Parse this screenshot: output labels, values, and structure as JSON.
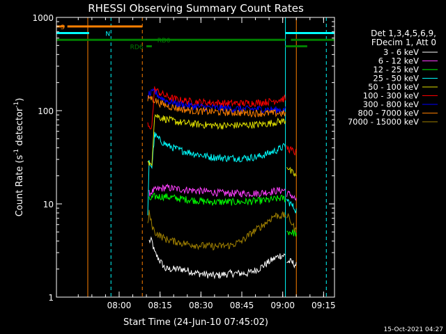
{
  "chart_data": {
    "type": "line",
    "title": "RHESSI Observing Summary Count Rates",
    "xlabel": "Start Time (24-Jun-10 07:45:02)",
    "ylabel_main": "Count Rate (s",
    "ylabel_sup1": "-1",
    "ylabel_mid": " detector",
    "ylabel_sup2": "-1",
    "ylabel_end": ")",
    "x_range_min": [
      -8,
      94
    ],
    "x_ticks": [
      {
        "min": 15,
        "label": "08:00"
      },
      {
        "min": 30,
        "label": "08:15"
      },
      {
        "min": 45,
        "label": "08:30"
      },
      {
        "min": 60,
        "label": "08:45"
      },
      {
        "min": 75,
        "label": "09:00"
      },
      {
        "min": 90,
        "label": "09:15"
      }
    ],
    "x_minor_step": 5,
    "y_scale": "log",
    "ylim": [
      1,
      1000
    ],
    "y_ticks": [
      {
        "v": 1,
        "label": "1"
      },
      {
        "v": 10,
        "label": "10"
      },
      {
        "v": 100,
        "label": "100"
      },
      {
        "v": 1000,
        "label": "1000"
      }
    ],
    "legend": {
      "header1": "Det 1,3,4,5,6,9,",
      "header2": "FDecim 1, Att 0",
      "placement": "right"
    },
    "series": [
      {
        "name": "3 - 6 keV",
        "color": "#ffffff",
        "points": [
          [
            26,
            4
          ],
          [
            27,
            4
          ],
          [
            28,
            3
          ],
          [
            32,
            2
          ],
          [
            38,
            2
          ],
          [
            44,
            1.8
          ],
          [
            50,
            1.7
          ],
          [
            56,
            1.8
          ],
          [
            62,
            1.8
          ],
          [
            66,
            2
          ],
          [
            70,
            2.4
          ],
          [
            72,
            2.6
          ],
          [
            74,
            2.8
          ],
          [
            76,
            2.8
          ]
        ],
        "after": [
          [
            76.5,
            2.4
          ],
          [
            78,
            2.4
          ],
          [
            80,
            2.2
          ]
        ]
      },
      {
        "name": "6 - 12 keV",
        "color": "#ff40ff",
        "points": [
          [
            26,
            13
          ],
          [
            27,
            13.5
          ],
          [
            28,
            14
          ],
          [
            32,
            15
          ],
          [
            36,
            14.5
          ],
          [
            42,
            14
          ],
          [
            48,
            13.5
          ],
          [
            54,
            13
          ],
          [
            60,
            13
          ],
          [
            66,
            13
          ],
          [
            70,
            13.5
          ],
          [
            74,
            14
          ],
          [
            76,
            14
          ]
        ],
        "after": [
          [
            76.5,
            13
          ],
          [
            78,
            12.5
          ],
          [
            80,
            11
          ]
        ]
      },
      {
        "name": "12 - 25 keV",
        "color": "#00ff00",
        "points": [
          [
            26,
            11
          ],
          [
            27,
            11.5
          ],
          [
            28,
            12
          ],
          [
            32,
            12
          ],
          [
            36,
            11.5
          ],
          [
            42,
            11
          ],
          [
            48,
            10.5
          ],
          [
            54,
            10.5
          ],
          [
            60,
            10.5
          ],
          [
            66,
            10.8
          ],
          [
            70,
            11
          ],
          [
            74,
            11.5
          ],
          [
            76,
            11.5
          ]
        ],
        "after": [
          [
            76.5,
            5
          ],
          [
            78,
            5
          ],
          [
            80,
            4.8
          ]
        ]
      },
      {
        "name": "25 - 50 keV",
        "color": "#00ffff",
        "points": [
          [
            25.5,
            7
          ],
          [
            26,
            28
          ],
          [
            27,
            25
          ],
          [
            28,
            55
          ],
          [
            30,
            48
          ],
          [
            33,
            42
          ],
          [
            37,
            38
          ],
          [
            42,
            35
          ],
          [
            48,
            32
          ],
          [
            54,
            31
          ],
          [
            60,
            31
          ],
          [
            66,
            32
          ],
          [
            70,
            35
          ],
          [
            73,
            38
          ],
          [
            76,
            42
          ]
        ],
        "after": [
          [
            76.5,
            11
          ],
          [
            78,
            10
          ],
          [
            80,
            8.5
          ]
        ]
      },
      {
        "name": "50 - 100 keV",
        "color": "#e0e000",
        "points": [
          [
            25.5,
            30
          ],
          [
            26,
            25
          ],
          [
            27,
            28
          ],
          [
            28,
            90
          ],
          [
            30,
            85
          ],
          [
            33,
            80
          ],
          [
            37,
            75
          ],
          [
            42,
            72
          ],
          [
            48,
            70
          ],
          [
            54,
            69
          ],
          [
            60,
            70
          ],
          [
            66,
            71
          ],
          [
            70,
            73
          ],
          [
            73,
            76
          ],
          [
            76,
            78
          ]
        ],
        "after": [
          [
            76.5,
            26
          ],
          [
            78,
            22
          ],
          [
            80,
            20
          ]
        ]
      },
      {
        "name": "100 - 300 keV",
        "color": "#ff0000",
        "points": [
          [
            25.5,
            70
          ],
          [
            26,
            65
          ],
          [
            27,
            70
          ],
          [
            28,
            170
          ],
          [
            30,
            155
          ],
          [
            33,
            140
          ],
          [
            37,
            130
          ],
          [
            42,
            125
          ],
          [
            48,
            122
          ],
          [
            54,
            120
          ],
          [
            60,
            120
          ],
          [
            66,
            122
          ],
          [
            70,
            125
          ],
          [
            73,
            130
          ],
          [
            76,
            135
          ]
        ],
        "after": [
          [
            76.5,
            40
          ],
          [
            78,
            38
          ],
          [
            80,
            35
          ]
        ]
      },
      {
        "name": "300 - 800 keV",
        "color": "#0000ff",
        "points": [
          [
            25.5,
            140
          ],
          [
            26,
            150
          ],
          [
            28,
            160
          ],
          [
            30,
            140
          ],
          [
            33,
            125
          ],
          [
            37,
            117
          ],
          [
            42,
            112
          ],
          [
            48,
            108
          ],
          [
            54,
            106
          ],
          [
            60,
            104
          ],
          [
            66,
            104
          ],
          [
            70,
            103
          ],
          [
            73,
            102
          ],
          [
            76,
            102
          ]
        ],
        "after": []
      },
      {
        "name": "800 - 7000 keV",
        "color": "#ff8000",
        "points": [
          [
            25.5,
            130
          ],
          [
            26,
            140
          ],
          [
            28,
            130
          ],
          [
            30,
            120
          ],
          [
            33,
            112
          ],
          [
            37,
            105
          ],
          [
            42,
            100
          ],
          [
            48,
            98
          ],
          [
            54,
            96
          ],
          [
            60,
            95
          ],
          [
            66,
            94
          ],
          [
            70,
            94
          ],
          [
            73,
            94
          ],
          [
            76,
            93
          ]
        ],
        "after": []
      },
      {
        "name": "7000 - 15000 keV",
        "color": "#a08000",
        "points": [
          [
            25.5,
            6
          ],
          [
            26,
            8
          ],
          [
            27,
            6
          ],
          [
            28,
            5
          ],
          [
            32,
            4.2
          ],
          [
            38,
            3.8
          ],
          [
            44,
            3.6
          ],
          [
            50,
            3.5
          ],
          [
            56,
            3.6
          ],
          [
            60,
            4
          ],
          [
            64,
            5
          ],
          [
            68,
            6
          ],
          [
            72,
            7.5
          ],
          [
            76,
            7.5
          ]
        ],
        "after": [
          [
            76.5,
            7.5
          ],
          [
            78,
            6.5
          ],
          [
            80,
            5
          ]
        ]
      }
    ],
    "solid_vlines": [
      {
        "min": -8,
        "color": "#00ffff"
      },
      {
        "min": 3.5,
        "color": "#ff8000"
      },
      {
        "min": 76,
        "color": "#00ffff"
      },
      {
        "min": 80,
        "color": "#ff8000"
      }
    ],
    "dashed_vlines": [
      {
        "min": 12,
        "color": "#00ffff"
      },
      {
        "min": 23.5,
        "color": "#ff8000"
      },
      {
        "min": 91,
        "color": "#00ffff"
      }
    ],
    "flag_bars": [
      {
        "label": "S",
        "color": "#ff8000",
        "y": 800,
        "segments": [
          [
            -8,
            -5
          ],
          [
            -4,
            23.5
          ]
        ],
        "label_at": -6.5
      },
      {
        "label": "N",
        "color": "#00ffff",
        "y": 680,
        "segments": [
          [
            -8,
            4
          ],
          [
            76,
            94
          ]
        ],
        "label_at": 10
      },
      {
        "label": "RD0",
        "color": "#008000",
        "y": 575,
        "segments": [
          [
            -8,
            76
          ],
          [
            78,
            94
          ]
        ],
        "label_at": 29
      },
      {
        "label": "RD6",
        "color": "#008000",
        "y": 490,
        "segments": [
          [
            25,
            27
          ],
          [
            76,
            84
          ]
        ],
        "label_at": 19
      }
    ],
    "timestamp": "15-Oct-2021 04:27"
  }
}
